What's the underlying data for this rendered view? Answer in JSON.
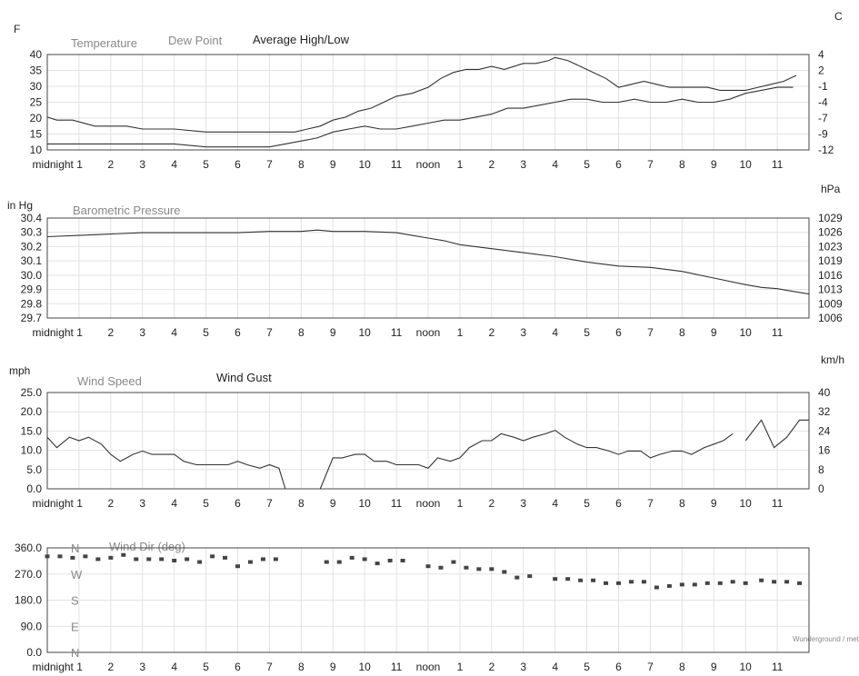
{
  "time_labels": [
    "midnight 1",
    "2",
    "3",
    "4",
    "5",
    "6",
    "7",
    "8",
    "9",
    "10",
    "11",
    "noon",
    "1",
    "2",
    "3",
    "4",
    "5",
    "6",
    "7",
    "8",
    "9",
    "10",
    "11"
  ],
  "watermark": "Wunderground / meteor",
  "chart_data": [
    {
      "id": "temperature",
      "type": "line",
      "left_unit": "F",
      "right_unit": "C",
      "legend": [
        "Temperature",
        "Dew Point",
        "Average High/Low"
      ],
      "y_ticks_left": [
        "40",
        "35",
        "30",
        "25",
        "20",
        "15",
        "10"
      ],
      "y_ticks_right": [
        "4",
        "2",
        "-1",
        "-4",
        "-7",
        "-9",
        "-12"
      ],
      "ylim": [
        10,
        42
      ],
      "xlim": [
        0,
        24
      ],
      "series": [
        {
          "name": "Temperature",
          "x": [
            0,
            0.3,
            0.8,
            1.5,
            2,
            2.5,
            3,
            4,
            5,
            6,
            7,
            7.8,
            8.2,
            8.6,
            9,
            9.4,
            9.8,
            10.2,
            10.6,
            11,
            11.5,
            12,
            12.4,
            12.8,
            13.2,
            13.6,
            14,
            14.4,
            15,
            15.4,
            15.8,
            16,
            16.4,
            16.8,
            17.2,
            17.6,
            18,
            18.4,
            18.8,
            19.2,
            19.6,
            20,
            20.4,
            20.8,
            21.2,
            21.6,
            22,
            22.4,
            22.8,
            23.2,
            23.6
          ],
          "y": [
            21,
            20,
            20,
            18,
            18,
            18,
            17,
            17,
            16,
            16,
            16,
            16,
            17,
            18,
            20,
            21,
            23,
            24,
            26,
            28,
            29,
            31,
            34,
            36,
            37,
            37,
            38,
            37,
            39,
            39,
            40,
            41,
            40,
            38,
            36,
            34,
            31,
            32,
            33,
            32,
            31,
            31,
            31,
            31,
            30,
            30,
            30,
            31,
            32,
            33,
            35
          ]
        },
        {
          "name": "Dew Point",
          "x": [
            0,
            1,
            2,
            3,
            4,
            5,
            6,
            7,
            7.5,
            8,
            8.5,
            9,
            9.5,
            10,
            10.5,
            11,
            11.5,
            12,
            12.5,
            13,
            13.5,
            14,
            14.5,
            15,
            15.5,
            16,
            16.5,
            17,
            17.5,
            18,
            18.5,
            19,
            19.5,
            20,
            20.5,
            21,
            21.5,
            22,
            22.5,
            23,
            23.5
          ],
          "y": [
            12,
            12,
            12,
            12,
            12,
            11,
            11,
            11,
            12,
            13,
            14,
            16,
            17,
            18,
            17,
            17,
            18,
            19,
            20,
            20,
            21,
            22,
            24,
            24,
            25,
            26,
            27,
            27,
            26,
            26,
            27,
            26,
            26,
            27,
            26,
            26,
            27,
            29,
            30,
            31,
            31
          ]
        }
      ]
    },
    {
      "id": "pressure",
      "type": "line",
      "title": "Barometric Pressure",
      "left_unit": "in Hg",
      "right_unit": "hPa",
      "y_ticks_left": [
        "30.4",
        "30.3",
        "30.2",
        "30.1",
        "30.0",
        "29.9",
        "29.8",
        "29.7"
      ],
      "y_ticks_right": [
        "1029",
        "1026",
        "1023",
        "1019",
        "1016",
        "1013",
        "1009",
        "1006"
      ],
      "ylim": [
        29.7,
        30.45
      ],
      "xlim": [
        0,
        24
      ],
      "series": [
        {
          "name": "Barometric Pressure",
          "x": [
            0,
            1,
            2,
            3,
            4,
            5,
            6,
            7,
            8,
            8.5,
            9,
            10,
            11,
            11.5,
            12,
            12.5,
            13,
            14,
            15,
            16,
            17,
            18,
            19,
            20,
            21,
            22,
            22.5,
            23,
            23.5,
            24
          ],
          "y": [
            30.31,
            30.32,
            30.33,
            30.34,
            30.34,
            30.34,
            30.34,
            30.35,
            30.35,
            30.36,
            30.35,
            30.35,
            30.34,
            30.32,
            30.3,
            30.28,
            30.25,
            30.22,
            30.19,
            30.16,
            30.12,
            30.09,
            30.08,
            30.05,
            30.0,
            29.95,
            29.93,
            29.92,
            29.9,
            29.88
          ]
        }
      ]
    },
    {
      "id": "wind",
      "type": "line",
      "left_unit": "mph",
      "right_unit": "km/h",
      "legend": [
        "Wind Speed",
        "Wind Gust"
      ],
      "y_ticks_left": [
        "25.0",
        "20.0",
        "15.0",
        "10.0",
        "5.0",
        "0.0"
      ],
      "y_ticks_right": [
        "40",
        "32",
        "24",
        "16",
        "8",
        "0"
      ],
      "ylim": [
        0,
        28
      ],
      "xlim": [
        0,
        24
      ],
      "series": [
        {
          "name": "Wind Speed",
          "segments": [
            {
              "x": [
                0,
                0.3,
                0.7,
                1,
                1.3,
                1.7,
                2,
                2.3,
                2.7,
                3,
                3.3,
                3.7,
                4,
                4.3,
                4.7,
                5,
                5.3,
                5.7,
                6,
                6.3,
                6.7,
                7,
                7.3,
                7.5
              ],
              "y": [
                15,
                12,
                15,
                14,
                15,
                13,
                10,
                8,
                10,
                11,
                10,
                10,
                10,
                8,
                7,
                7,
                7,
                7,
                8,
                7,
                6,
                7,
                6,
                0
              ]
            },
            {
              "x": [
                8.6,
                9,
                9.3,
                9.7,
                10,
                10.3,
                10.7,
                11,
                11.3,
                11.7,
                12,
                12.3,
                12.7,
                13,
                13.3,
                13.7,
                14,
                14.3,
                14.7,
                15,
                15.3,
                15.7,
                16,
                16.3,
                16.7,
                17,
                17.3,
                17.7,
                18,
                18.3,
                18.7,
                19,
                19.3,
                19.7,
                20,
                20.3,
                20.7,
                21,
                21.3,
                21.6
              ],
              "y": [
                0,
                9,
                9,
                10,
                10,
                8,
                8,
                7,
                7,
                7,
                6,
                9,
                8,
                9,
                12,
                14,
                14,
                16,
                15,
                14,
                15,
                16,
                17,
                15,
                13,
                12,
                12,
                11,
                10,
                11,
                11,
                9,
                10,
                11,
                11,
                10,
                12,
                13,
                14,
                16
              ]
            },
            {
              "x": [
                22,
                22.5,
                22.9,
                23.3,
                23.7,
                24
              ],
              "y": [
                14,
                20,
                12,
                15,
                20,
                20
              ]
            }
          ]
        }
      ]
    },
    {
      "id": "winddir",
      "type": "scatter",
      "title": "Wind Dir (deg)",
      "y_ticks_left": [
        "360.0",
        "270.0",
        "180.0",
        "90.0",
        "0.0"
      ],
      "compass": [
        "N",
        "W",
        "S",
        "E",
        "N"
      ],
      "ylim": [
        0,
        370
      ],
      "xlim": [
        0,
        24
      ],
      "series": [
        {
          "name": "Wind Dir",
          "x": [
            0,
            0.4,
            0.8,
            1.2,
            1.6,
            2,
            2.4,
            2.8,
            3.2,
            3.6,
            4,
            4.4,
            4.8,
            5.2,
            5.6,
            6,
            6.4,
            6.8,
            7.2,
            8.8,
            9.2,
            9.6,
            10,
            10.4,
            10.8,
            11.2,
            12,
            12.4,
            12.8,
            13.2,
            13.6,
            14,
            14.4,
            14.8,
            15.2,
            16,
            16.4,
            16.8,
            17.2,
            17.6,
            18,
            18.4,
            18.8,
            19.2,
            19.6,
            20,
            20.4,
            20.8,
            21.2,
            21.6,
            22,
            22.5,
            22.9,
            23.3,
            23.7
          ],
          "y": [
            340,
            340,
            335,
            340,
            330,
            335,
            345,
            330,
            330,
            330,
            325,
            330,
            320,
            340,
            335,
            305,
            320,
            330,
            330,
            320,
            320,
            335,
            330,
            315,
            325,
            325,
            305,
            300,
            320,
            300,
            295,
            295,
            285,
            265,
            270,
            260,
            260,
            255,
            255,
            245,
            245,
            250,
            250,
            230,
            235,
            240,
            240,
            245,
            245,
            250,
            245,
            255,
            250,
            250,
            245
          ]
        }
      ]
    }
  ]
}
